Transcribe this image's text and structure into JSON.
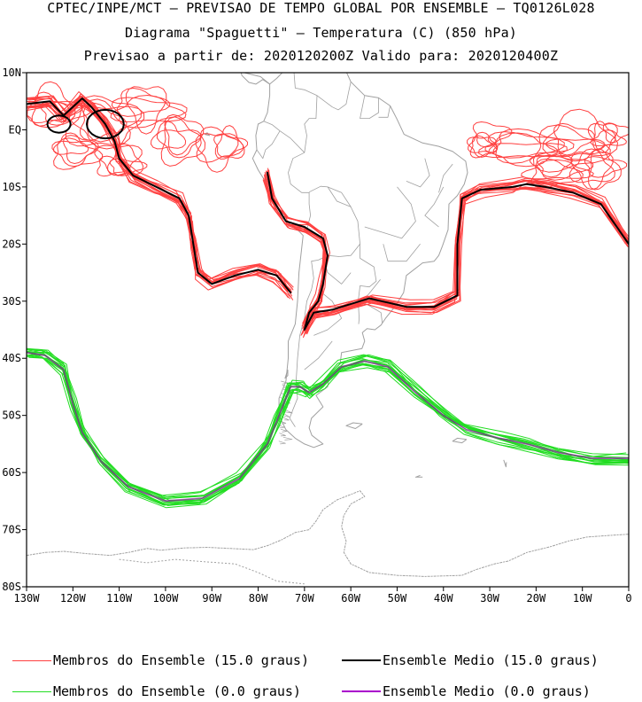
{
  "titles": {
    "line1": "CPTEC/INPE/MCT – PREVISAO DE TEMPO GLOBAL POR ENSEMBLE – TQ0126L028",
    "line2": "Diagrama \"Spaguetti\" – Temperatura (C) (850 hPa)",
    "line3": "Previsao a partir de: 2020120200Z  Valido para: 2020120400Z"
  },
  "colors": {
    "members_15": "#ff4040",
    "mean_15": "#000000",
    "members_0": "#22dd22",
    "mean_0": "#aa00cc",
    "coast": "#a0a0a0"
  },
  "legend": [
    {
      "label": "Membros do Ensemble (15.0 graus)",
      "color": "#ff4040",
      "width": 1
    },
    {
      "label": "Ensemble Medio (15.0 graus)",
      "color": "#000000",
      "width": 2
    },
    {
      "label": "Membros do Ensemble (0.0 graus)",
      "color": "#22dd22",
      "width": 1
    },
    {
      "label": "Ensemble Medio (0.0 graus)",
      "color": "#aa00cc",
      "width": 2
    }
  ],
  "chart_data": {
    "type": "line",
    "title": "Diagrama \"Spaguetti\" – Temperatura (C) (850 hPa)",
    "xlim": [
      -130,
      0
    ],
    "ylim": [
      -80,
      10
    ],
    "x_ticks": [
      {
        "v": -130,
        "label": "130W"
      },
      {
        "v": -120,
        "label": "120W"
      },
      {
        "v": -110,
        "label": "110W"
      },
      {
        "v": -100,
        "label": "100W"
      },
      {
        "v": -90,
        "label": "90W"
      },
      {
        "v": -80,
        "label": "80W"
      },
      {
        "v": -70,
        "label": "70W"
      },
      {
        "v": -60,
        "label": "60W"
      },
      {
        "v": -50,
        "label": "50W"
      },
      {
        "v": -40,
        "label": "40W"
      },
      {
        "v": -30,
        "label": "30W"
      },
      {
        "v": -20,
        "label": "20W"
      },
      {
        "v": -10,
        "label": "10W"
      },
      {
        "v": 0,
        "label": "0"
      }
    ],
    "y_ticks": [
      {
        "v": 10,
        "label": "10N"
      },
      {
        "v": 0,
        "label": "EQ"
      },
      {
        "v": -10,
        "label": "10S"
      },
      {
        "v": -20,
        "label": "20S"
      },
      {
        "v": -30,
        "label": "30S"
      },
      {
        "v": -40,
        "label": "40S"
      },
      {
        "v": -50,
        "label": "50S"
      },
      {
        "v": -60,
        "label": "60S"
      },
      {
        "v": -70,
        "label": "70S"
      },
      {
        "v": -80,
        "label": "80S"
      }
    ],
    "ensemble_members": 15,
    "series": [
      {
        "name": "Ensemble Medio (15.0 graus)",
        "segments": [
          [
            [
              -130,
              4.5
            ],
            [
              -125,
              5
            ],
            [
              -122,
              2.5
            ],
            [
              -118,
              5.5
            ],
            [
              -116,
              4
            ],
            [
              -113,
              1
            ],
            [
              -111,
              -2
            ],
            [
              -110,
              -5
            ],
            [
              -107,
              -8
            ],
            [
              -102,
              -10
            ],
            [
              -97,
              -12
            ],
            [
              -95,
              -15
            ],
            [
              -94,
              -20
            ],
            [
              -93,
              -25
            ],
            [
              -90,
              -27
            ],
            [
              -85,
              -25.5
            ],
            [
              -80,
              -24.5
            ],
            [
              -76,
              -25.5
            ],
            [
              -73,
              -28.5
            ]
          ],
          [
            [
              -78,
              -7.5
            ],
            [
              -77,
              -12
            ],
            [
              -74,
              -16
            ],
            [
              -70,
              -17
            ],
            [
              -66,
              -19
            ],
            [
              -65,
              -22
            ],
            [
              -66,
              -27
            ],
            [
              -67,
              -30
            ],
            [
              -69,
              -32
            ],
            [
              -70,
              -35
            ],
            [
              -68,
              -32
            ],
            [
              -64,
              -31.5
            ],
            [
              -56,
              -29.5
            ],
            [
              -48,
              -31
            ],
            [
              -42,
              -31
            ],
            [
              -37,
              -29
            ],
            [
              -37,
              -20
            ],
            [
              -36,
              -12
            ],
            [
              -32,
              -10.5
            ],
            [
              -25,
              -10
            ],
            [
              -22,
              -9.5
            ],
            [
              -18,
              -10
            ],
            [
              -12,
              -11
            ],
            [
              -6,
              -13
            ],
            [
              0,
              -20
            ]
          ]
        ]
      },
      {
        "name": "Ensemble Medio (0.0 graus)",
        "points": [
          [
            -130,
            -39
          ],
          [
            -126,
            -39.5
          ],
          [
            -122,
            -42
          ],
          [
            -120,
            -48
          ],
          [
            -118,
            -53
          ],
          [
            -114,
            -58
          ],
          [
            -108,
            -62.5
          ],
          [
            -100,
            -65
          ],
          [
            -92,
            -64.5
          ],
          [
            -84,
            -61
          ],
          [
            -78,
            -55
          ],
          [
            -76,
            -51
          ],
          [
            -73,
            -45
          ],
          [
            -71,
            -45
          ],
          [
            -69,
            -46
          ],
          [
            -66,
            -44.5
          ],
          [
            -62,
            -41.5
          ],
          [
            -57,
            -40.5
          ],
          [
            -52,
            -41.5
          ],
          [
            -46,
            -46
          ],
          [
            -40,
            -50
          ],
          [
            -35,
            -52.5
          ],
          [
            -28,
            -54
          ],
          [
            -22,
            -55
          ],
          [
            -15,
            -56.5
          ],
          [
            -8,
            -57.5
          ],
          [
            0,
            -57.5
          ]
        ]
      }
    ]
  }
}
